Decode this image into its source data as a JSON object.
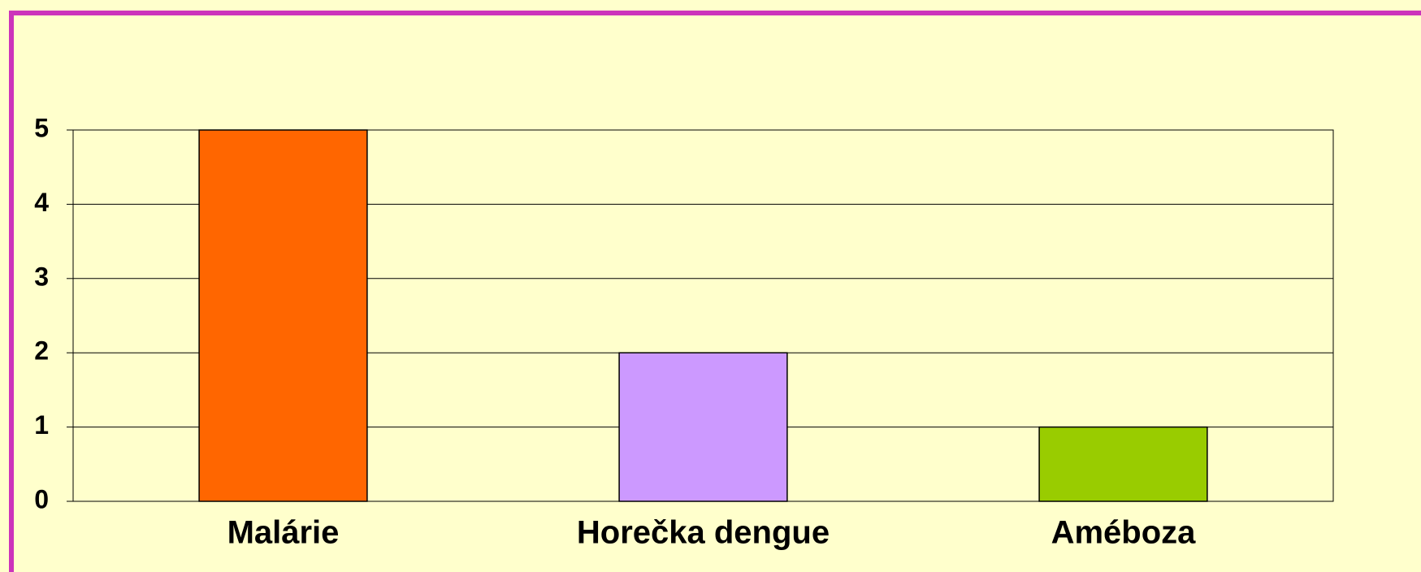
{
  "chart_data": {
    "type": "bar",
    "categories": [
      "Malárie",
      "Horečka dengue",
      "Améboza"
    ],
    "values": [
      5,
      2,
      1
    ],
    "colors": [
      "#ff6600",
      "#cc99ff",
      "#99cc00"
    ],
    "ylim": [
      0,
      5
    ],
    "yticks": [
      0,
      1,
      2,
      3,
      4,
      5
    ],
    "grid": true
  }
}
